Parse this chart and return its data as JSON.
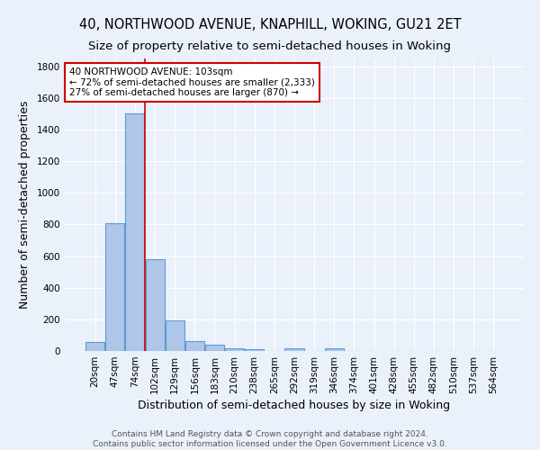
{
  "title": "40, NORTHWOOD AVENUE, KNAPHILL, WOKING, GU21 2ET",
  "subtitle": "Size of property relative to semi-detached houses in Woking",
  "xlabel": "Distribution of semi-detached houses by size in Woking",
  "ylabel": "Number of semi-detached properties",
  "footer_line1": "Contains HM Land Registry data © Crown copyright and database right 2024.",
  "footer_line2": "Contains public sector information licensed under the Open Government Licence v3.0.",
  "categories": [
    "20sqm",
    "47sqm",
    "74sqm",
    "102sqm",
    "129sqm",
    "156sqm",
    "183sqm",
    "210sqm",
    "238sqm",
    "265sqm",
    "292sqm",
    "319sqm",
    "346sqm",
    "374sqm",
    "401sqm",
    "428sqm",
    "455sqm",
    "482sqm",
    "510sqm",
    "537sqm",
    "564sqm"
  ],
  "values": [
    55,
    808,
    1500,
    580,
    192,
    62,
    42,
    18,
    12,
    0,
    15,
    0,
    18,
    0,
    0,
    0,
    0,
    0,
    0,
    0,
    0
  ],
  "bar_color": "#aec6e8",
  "bar_edge_color": "#5b9bd5",
  "background_color": "#eaf1fb",
  "grid_color": "#ffffff",
  "property_bin_index": 3,
  "annotation_text_line1": "40 NORTHWOOD AVENUE: 103sqm",
  "annotation_text_line2": "← 72% of semi-detached houses are smaller (2,333)",
  "annotation_text_line3": "27% of semi-detached houses are larger (870) →",
  "annotation_box_color": "#ffffff",
  "annotation_box_edge_color": "#cc0000",
  "red_line_color": "#cc0000",
  "ylim": [
    0,
    1850
  ],
  "yticks": [
    0,
    200,
    400,
    600,
    800,
    1000,
    1200,
    1400,
    1600,
    1800
  ],
  "title_fontsize": 10.5,
  "subtitle_fontsize": 9.5,
  "axis_label_fontsize": 9,
  "tick_fontsize": 7.5,
  "annotation_fontsize": 7.5,
  "footer_fontsize": 6.5
}
